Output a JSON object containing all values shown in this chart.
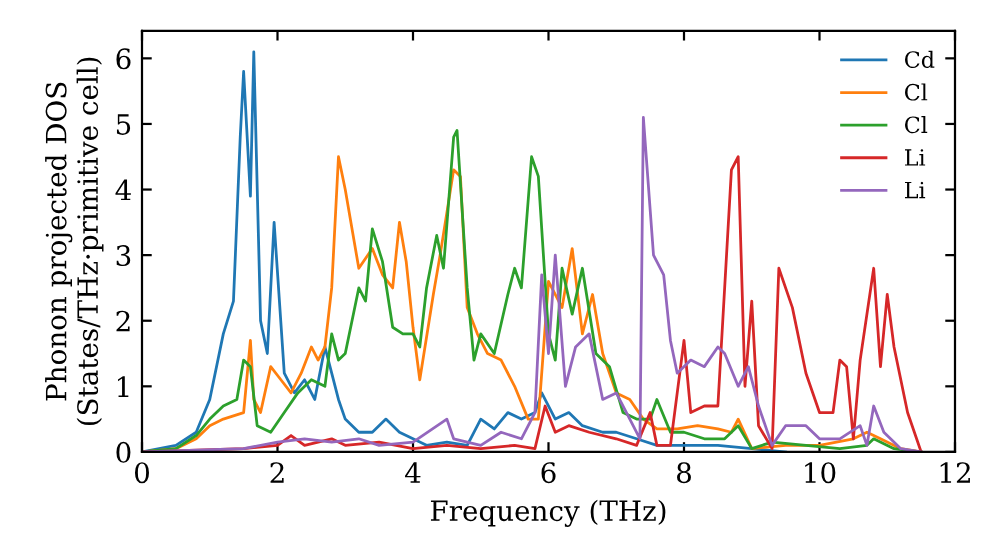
{
  "chart_data": {
    "type": "line",
    "xlabel": "Frequency (THz)",
    "ylabel": "Phonon projected DOS\n(States/THz·primitive cell)",
    "xlim": [
      0,
      12
    ],
    "ylim": [
      0,
      6.42
    ],
    "xticks": [
      0,
      2,
      4,
      6,
      8,
      10,
      12
    ],
    "yticks": [
      0,
      1,
      2,
      3,
      4,
      5,
      6
    ],
    "grid": false,
    "legend": "top right",
    "marker": "none",
    "line_style": "solid",
    "series": [
      {
        "name": "Cd",
        "color": "#1f77b4",
        "x": [
          0,
          0.5,
          0.8,
          1.0,
          1.2,
          1.35,
          1.45,
          1.5,
          1.6,
          1.65,
          1.75,
          1.85,
          1.95,
          2.1,
          2.25,
          2.4,
          2.55,
          2.7,
          2.8,
          2.9,
          3.0,
          3.2,
          3.4,
          3.6,
          3.8,
          4.0,
          4.2,
          4.5,
          4.8,
          5.0,
          5.2,
          5.4,
          5.6,
          5.8,
          5.9,
          6.1,
          6.3,
          6.5,
          6.8,
          7.0,
          7.3,
          7.6,
          8,
          8.5,
          9,
          9.5
        ],
        "values": [
          0,
          0.1,
          0.3,
          0.8,
          1.8,
          2.3,
          4.8,
          5.8,
          3.9,
          6.1,
          2.0,
          1.5,
          3.5,
          1.2,
          0.9,
          1.1,
          0.8,
          1.6,
          1.2,
          0.8,
          0.5,
          0.3,
          0.3,
          0.5,
          0.3,
          0.2,
          0.1,
          0.15,
          0.1,
          0.5,
          0.35,
          0.6,
          0.5,
          0.6,
          0.9,
          0.5,
          0.6,
          0.4,
          0.3,
          0.3,
          0.2,
          0.1,
          0.1,
          0.1,
          0.05,
          0
        ]
      },
      {
        "name": "Cl",
        "color": "#ff7f0e",
        "x": [
          0,
          0.5,
          0.8,
          1.0,
          1.2,
          1.5,
          1.6,
          1.65,
          1.75,
          1.9,
          2.05,
          2.2,
          2.35,
          2.5,
          2.6,
          2.7,
          2.8,
          2.9,
          3.0,
          3.2,
          3.4,
          3.55,
          3.7,
          3.8,
          3.9,
          4.0,
          4.1,
          4.3,
          4.4,
          4.6,
          4.7,
          4.8,
          4.95,
          5.1,
          5.3,
          5.5,
          5.7,
          5.85,
          6.0,
          6.2,
          6.35,
          6.5,
          6.65,
          6.8,
          7.0,
          7.2,
          7.4,
          7.6,
          7.9,
          8.2,
          8.5,
          8.7,
          8.8,
          9.0,
          9.5,
          10,
          10.5,
          10.7,
          10.9,
          11.2,
          11.5
        ],
        "values": [
          0,
          0.05,
          0.2,
          0.4,
          0.5,
          0.6,
          1.7,
          0.8,
          0.6,
          1.3,
          1.1,
          0.9,
          1.2,
          1.6,
          1.4,
          1.6,
          2.5,
          4.5,
          4.0,
          2.8,
          3.1,
          2.7,
          2.5,
          3.5,
          2.9,
          1.9,
          1.1,
          2.4,
          3.0,
          4.3,
          4.2,
          2.2,
          1.8,
          1.5,
          1.4,
          1.0,
          0.5,
          0.5,
          2.6,
          2.2,
          3.1,
          1.8,
          2.4,
          1.5,
          0.9,
          0.8,
          0.5,
          0.35,
          0.35,
          0.4,
          0.35,
          0.3,
          0.5,
          0.05,
          0.1,
          0.1,
          0.2,
          0.3,
          0.2,
          0.05,
          0
        ]
      },
      {
        "name": "Cl",
        "color": "#2ca02c",
        "x": [
          0,
          0.5,
          0.8,
          1.0,
          1.2,
          1.4,
          1.5,
          1.6,
          1.7,
          1.9,
          2.1,
          2.3,
          2.5,
          2.7,
          2.8,
          2.9,
          3.0,
          3.2,
          3.3,
          3.4,
          3.55,
          3.7,
          3.85,
          4.0,
          4.1,
          4.2,
          4.35,
          4.45,
          4.6,
          4.65,
          4.8,
          4.9,
          5.0,
          5.2,
          5.4,
          5.5,
          5.6,
          5.75,
          5.85,
          6.0,
          6.1,
          6.2,
          6.35,
          6.5,
          6.7,
          6.9,
          7.1,
          7.3,
          7.5,
          7.6,
          7.8,
          8.0,
          8.3,
          8.6,
          8.8,
          9.0,
          9.3,
          9.8,
          10.3,
          10.7,
          10.8,
          11.1,
          11.5
        ],
        "values": [
          0,
          0.05,
          0.25,
          0.5,
          0.7,
          0.8,
          1.4,
          1.3,
          0.4,
          0.3,
          0.6,
          0.9,
          1.1,
          1.0,
          1.8,
          1.4,
          1.5,
          2.5,
          2.3,
          3.4,
          2.9,
          1.9,
          1.8,
          1.8,
          1.6,
          2.5,
          3.3,
          2.8,
          4.8,
          4.9,
          2.5,
          1.4,
          1.8,
          1.5,
          2.4,
          2.8,
          2.5,
          4.5,
          4.2,
          1.8,
          1.4,
          2.8,
          2.1,
          2.8,
          1.5,
          1.3,
          0.6,
          0.5,
          0.5,
          0.8,
          0.3,
          0.3,
          0.2,
          0.2,
          0.4,
          0.05,
          0.15,
          0.1,
          0.05,
          0.1,
          0.2,
          0.05,
          0
        ]
      },
      {
        "name": "Li",
        "color": "#d62728",
        "x": [
          0,
          1.5,
          2.0,
          2.2,
          2.4,
          2.8,
          3.0,
          3.5,
          4.0,
          4.5,
          5,
          5.5,
          5.8,
          5.95,
          6.1,
          6.3,
          6.6,
          7.0,
          7.3,
          7.5,
          7.6,
          7.8,
          8.0,
          8.1,
          8.3,
          8.5,
          8.7,
          8.8,
          8.9,
          9.0,
          9.1,
          9.3,
          9.4,
          9.6,
          9.8,
          10.0,
          10.2,
          10.3,
          10.4,
          10.5,
          10.6,
          10.8,
          10.9,
          11.0,
          11.1,
          11.3,
          11.5
        ],
        "values": [
          0,
          0.05,
          0.1,
          0.25,
          0.1,
          0.2,
          0.1,
          0.15,
          0.05,
          0.1,
          0.05,
          0.1,
          0.05,
          0.7,
          0.3,
          0.4,
          0.3,
          0.2,
          0.1,
          0.6,
          0.1,
          0.1,
          1.7,
          0.6,
          0.7,
          0.7,
          4.3,
          4.5,
          1.0,
          2.3,
          0.4,
          0.05,
          2.8,
          2.2,
          1.2,
          0.6,
          0.6,
          1.4,
          1.3,
          0.2,
          1.4,
          2.8,
          1.3,
          2.4,
          1.6,
          0.6,
          0
        ]
      },
      {
        "name": "Li",
        "color": "#9467bd",
        "x": [
          0,
          1.5,
          2,
          2.4,
          2.8,
          3.2,
          3.5,
          4,
          4.5,
          4.6,
          5.0,
          5.3,
          5.6,
          5.8,
          5.9,
          6.0,
          6.1,
          6.25,
          6.4,
          6.6,
          6.8,
          7.0,
          7.2,
          7.35,
          7.4,
          7.55,
          7.7,
          7.8,
          7.9,
          8.1,
          8.3,
          8.5,
          8.6,
          8.8,
          8.95,
          9.1,
          9.3,
          9.5,
          9.8,
          10.0,
          10.3,
          10.6,
          10.7,
          10.8,
          10.95,
          11.2,
          11.5
        ],
        "values": [
          0,
          0.05,
          0.15,
          0.2,
          0.15,
          0.2,
          0.1,
          0.15,
          0.5,
          0.2,
          0.1,
          0.3,
          0.2,
          0.6,
          2.7,
          1.5,
          3.0,
          1.0,
          1.6,
          1.8,
          0.8,
          0.9,
          0.5,
          0.2,
          5.1,
          3.0,
          2.7,
          1.7,
          1.2,
          1.4,
          1.3,
          1.6,
          1.5,
          1.0,
          1.3,
          0.7,
          0.1,
          0.4,
          0.4,
          0.2,
          0.2,
          0.4,
          0.1,
          0.7,
          0.3,
          0.05,
          0
        ]
      }
    ]
  }
}
